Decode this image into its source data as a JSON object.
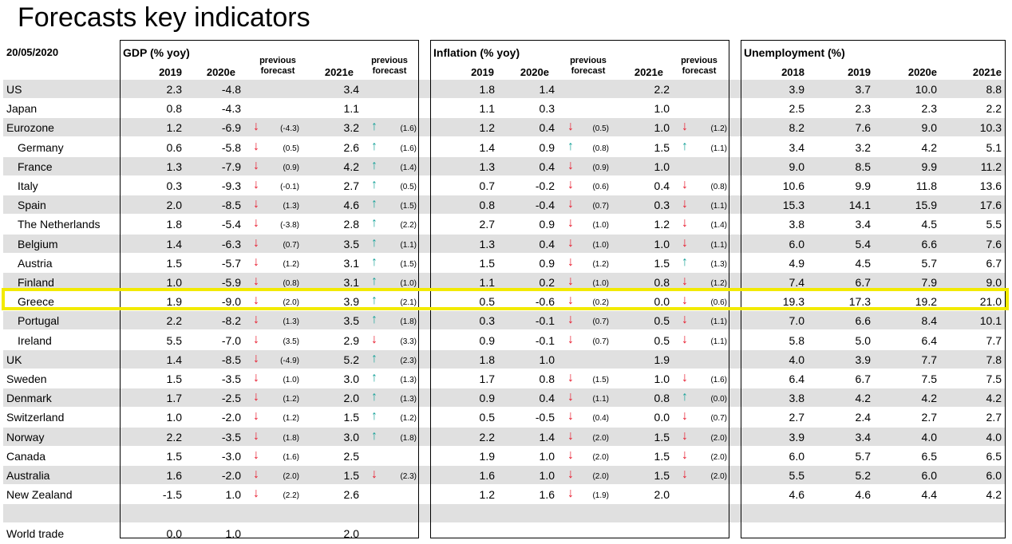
{
  "title": "Forecasts key indicators",
  "date": "20/05/2020",
  "colors": {
    "band": "#e0e0e0",
    "down_arrow": "#e8192c",
    "up_arrow": "#1aa39a",
    "highlight": "#f2ea00"
  },
  "arrows": {
    "down": "↓",
    "up": "↑"
  },
  "gdp": {
    "title": "GDP (% yoy)",
    "h2019": "2019",
    "h2020e": "2020e",
    "hprev1_a": "previous",
    "hprev1_b": "forecast",
    "h2021e": "2021e",
    "hprev2_a": "previous",
    "hprev2_b": "forecast"
  },
  "inflation": {
    "title": "Inflation (% yoy)",
    "h2019": "2019",
    "h2020e": "2020e",
    "hprev1_a": "previous",
    "hprev1_b": "forecast",
    "h2021e": "2021e",
    "hprev2_a": "previous",
    "hprev2_b": "forecast"
  },
  "unemployment": {
    "title": "Unemployment (%)",
    "h2018": "2018",
    "h2019": "2019",
    "h2020e": "2020e",
    "h2021e": "2021e"
  },
  "rows": [
    {
      "label": "US",
      "indent": false,
      "band": true,
      "g19": "2.3",
      "g20": "-4.8",
      "g20a": "",
      "g20p": "",
      "g21": "3.4",
      "g21a": "",
      "g21p": "",
      "i19": "1.8",
      "i20": "1.4",
      "i20a": "",
      "i20p": "",
      "i21": "2.2",
      "i21a": "",
      "i21p": "",
      "u18": "3.9",
      "u19": "3.7",
      "u20": "10.0",
      "u21": "8.8"
    },
    {
      "label": "Japan",
      "indent": false,
      "band": false,
      "g19": "0.8",
      "g20": "-4.3",
      "g20a": "",
      "g20p": "",
      "g21": "1.1",
      "g21a": "",
      "g21p": "",
      "i19": "1.1",
      "i20": "0.3",
      "i20a": "",
      "i20p": "",
      "i21": "1.0",
      "i21a": "",
      "i21p": "",
      "u18": "2.5",
      "u19": "2.3",
      "u20": "2.3",
      "u21": "2.2"
    },
    {
      "label": "Eurozone",
      "indent": false,
      "band": true,
      "g19": "1.2",
      "g20": "-6.9",
      "g20a": "down",
      "g20p": "(-4.3)",
      "g21": "3.2",
      "g21a": "up",
      "g21p": "(1.6)",
      "i19": "1.2",
      "i20": "0.4",
      "i20a": "down",
      "i20p": "(0.5)",
      "i21": "1.0",
      "i21a": "down",
      "i21p": "(1.2)",
      "u18": "8.2",
      "u19": "7.6",
      "u20": "9.0",
      "u21": "10.3"
    },
    {
      "label": "Germany",
      "indent": true,
      "band": false,
      "g19": "0.6",
      "g20": "-5.8",
      "g20a": "down",
      "g20p": "(0.5)",
      "g21": "2.6",
      "g21a": "up",
      "g21p": "(1.6)",
      "i19": "1.4",
      "i20": "0.9",
      "i20a": "up",
      "i20p": "(0.8)",
      "i21": "1.5",
      "i21a": "up",
      "i21p": "(1.1)",
      "u18": "3.4",
      "u19": "3.2",
      "u20": "4.2",
      "u21": "5.1"
    },
    {
      "label": "France",
      "indent": true,
      "band": true,
      "g19": "1.3",
      "g20": "-7.9",
      "g20a": "down",
      "g20p": "(0.9)",
      "g21": "4.2",
      "g21a": "up",
      "g21p": "(1.4)",
      "i19": "1.3",
      "i20": "0.4",
      "i20a": "down",
      "i20p": "(0.9)",
      "i21": "1.0",
      "i21a": "",
      "i21p": "",
      "u18": "9.0",
      "u19": "8.5",
      "u20": "9.9",
      "u21": "11.2"
    },
    {
      "label": "Italy",
      "indent": true,
      "band": false,
      "g19": "0.3",
      "g20": "-9.3",
      "g20a": "down",
      "g20p": "(-0.1)",
      "g21": "2.7",
      "g21a": "up",
      "g21p": "(0.5)",
      "i19": "0.7",
      "i20": "-0.2",
      "i20a": "down",
      "i20p": "(0.6)",
      "i21": "0.4",
      "i21a": "down",
      "i21p": "(0.8)",
      "u18": "10.6",
      "u19": "9.9",
      "u20": "11.8",
      "u21": "13.6"
    },
    {
      "label": "Spain",
      "indent": true,
      "band": true,
      "g19": "2.0",
      "g20": "-8.5",
      "g20a": "down",
      "g20p": "(1.3)",
      "g21": "4.6",
      "g21a": "up",
      "g21p": "(1.5)",
      "i19": "0.8",
      "i20": "-0.4",
      "i20a": "down",
      "i20p": "(0.7)",
      "i21": "0.3",
      "i21a": "down",
      "i21p": "(1.1)",
      "u18": "15.3",
      "u19": "14.1",
      "u20": "15.9",
      "u21": "17.6"
    },
    {
      "label": "The Netherlands",
      "indent": true,
      "band": false,
      "g19": "1.8",
      "g20": "-5.4",
      "g20a": "down",
      "g20p": "(-3.8)",
      "g21": "2.8",
      "g21a": "up",
      "g21p": "(2.2)",
      "i19": "2.7",
      "i20": "0.9",
      "i20a": "down",
      "i20p": "(1.0)",
      "i21": "1.2",
      "i21a": "down",
      "i21p": "(1.4)",
      "u18": "3.8",
      "u19": "3.4",
      "u20": "4.5",
      "u21": "5.5"
    },
    {
      "label": "Belgium",
      "indent": true,
      "band": true,
      "g19": "1.4",
      "g20": "-6.3",
      "g20a": "down",
      "g20p": "(0.7)",
      "g21": "3.5",
      "g21a": "up",
      "g21p": "(1.1)",
      "i19": "1.3",
      "i20": "0.4",
      "i20a": "down",
      "i20p": "(1.0)",
      "i21": "1.0",
      "i21a": "down",
      "i21p": "(1.1)",
      "u18": "6.0",
      "u19": "5.4",
      "u20": "6.6",
      "u21": "7.6"
    },
    {
      "label": "Austria",
      "indent": true,
      "band": false,
      "g19": "1.5",
      "g20": "-5.7",
      "g20a": "down",
      "g20p": "(1.2)",
      "g21": "3.1",
      "g21a": "up",
      "g21p": "(1.5)",
      "i19": "1.5",
      "i20": "0.9",
      "i20a": "down",
      "i20p": "(1.2)",
      "i21": "1.5",
      "i21a": "up",
      "i21p": "(1.3)",
      "u18": "4.9",
      "u19": "4.5",
      "u20": "5.7",
      "u21": "6.7"
    },
    {
      "label": "Finland",
      "indent": true,
      "band": true,
      "g19": "1.0",
      "g20": "-5.9",
      "g20a": "down",
      "g20p": "(0.8)",
      "g21": "3.1",
      "g21a": "up",
      "g21p": "(1.0)",
      "i19": "1.1",
      "i20": "0.2",
      "i20a": "down",
      "i20p": "(1.0)",
      "i21": "0.8",
      "i21a": "down",
      "i21p": "(1.2)",
      "u18": "7.4",
      "u19": "6.7",
      "u20": "7.9",
      "u21": "9.0"
    },
    {
      "label": "Greece",
      "indent": true,
      "band": false,
      "g19": "1.9",
      "g20": "-9.0",
      "g20a": "down",
      "g20p": "(2.0)",
      "g21": "3.9",
      "g21a": "up",
      "g21p": "(2.1)",
      "i19": "0.5",
      "i20": "-0.6",
      "i20a": "down",
      "i20p": "(0.2)",
      "i21": "0.0",
      "i21a": "down",
      "i21p": "(0.6)",
      "u18": "19.3",
      "u19": "17.3",
      "u20": "19.2",
      "u21": "21.0"
    },
    {
      "label": "Portugal",
      "indent": true,
      "band": true,
      "g19": "2.2",
      "g20": "-8.2",
      "g20a": "down",
      "g20p": "(1.3)",
      "g21": "3.5",
      "g21a": "up",
      "g21p": "(1.8)",
      "i19": "0.3",
      "i20": "-0.1",
      "i20a": "down",
      "i20p": "(0.7)",
      "i21": "0.5",
      "i21a": "down",
      "i21p": "(1.1)",
      "u18": "7.0",
      "u19": "6.6",
      "u20": "8.4",
      "u21": "10.1"
    },
    {
      "label": "Ireland",
      "indent": true,
      "band": false,
      "g19": "5.5",
      "g20": "-7.0",
      "g20a": "down",
      "g20p": "(3.5)",
      "g21": "2.9",
      "g21a": "down",
      "g21p": "(3.3)",
      "i19": "0.9",
      "i20": "-0.1",
      "i20a": "down",
      "i20p": "(0.7)",
      "i21": "0.5",
      "i21a": "down",
      "i21p": "(1.1)",
      "u18": "5.8",
      "u19": "5.0",
      "u20": "6.4",
      "u21": "7.7"
    },
    {
      "label": "UK",
      "indent": false,
      "band": true,
      "g19": "1.4",
      "g20": "-8.5",
      "g20a": "down",
      "g20p": "(-4.9)",
      "g21": "5.2",
      "g21a": "up",
      "g21p": "(2.3)",
      "i19": "1.8",
      "i20": "1.0",
      "i20a": "",
      "i20p": "",
      "i21": "1.9",
      "i21a": "",
      "i21p": "",
      "u18": "4.0",
      "u19": "3.9",
      "u20": "7.7",
      "u21": "7.8"
    },
    {
      "label": "Sweden",
      "indent": false,
      "band": false,
      "g19": "1.5",
      "g20": "-3.5",
      "g20a": "down",
      "g20p": "(1.0)",
      "g21": "3.0",
      "g21a": "up",
      "g21p": "(1.3)",
      "i19": "1.7",
      "i20": "0.8",
      "i20a": "down",
      "i20p": "(1.5)",
      "i21": "1.0",
      "i21a": "down",
      "i21p": "(1.6)",
      "u18": "6.4",
      "u19": "6.7",
      "u20": "7.5",
      "u21": "7.5"
    },
    {
      "label": "Denmark",
      "indent": false,
      "band": true,
      "g19": "1.7",
      "g20": "-2.5",
      "g20a": "down",
      "g20p": "(1.2)",
      "g21": "2.0",
      "g21a": "up",
      "g21p": "(1.3)",
      "i19": "0.9",
      "i20": "0.4",
      "i20a": "down",
      "i20p": "(1.1)",
      "i21": "0.8",
      "i21a": "up",
      "i21p": "(0.0)",
      "u18": "3.8",
      "u19": "4.2",
      "u20": "4.2",
      "u21": "4.2"
    },
    {
      "label": "Switzerland",
      "indent": false,
      "band": false,
      "g19": "1.0",
      "g20": "-2.0",
      "g20a": "down",
      "g20p": "(1.2)",
      "g21": "1.5",
      "g21a": "up",
      "g21p": "(1.2)",
      "i19": "0.5",
      "i20": "-0.5",
      "i20a": "down",
      "i20p": "(0.4)",
      "i21": "0.0",
      "i21a": "down",
      "i21p": "(0.7)",
      "u18": "2.7",
      "u19": "2.4",
      "u20": "2.7",
      "u21": "2.7"
    },
    {
      "label": "Norway",
      "indent": false,
      "band": true,
      "g19": "2.2",
      "g20": "-3.5",
      "g20a": "down",
      "g20p": "(1.8)",
      "g21": "3.0",
      "g21a": "up",
      "g21p": "(1.8)",
      "i19": "2.2",
      "i20": "1.4",
      "i20a": "down",
      "i20p": "(2.0)",
      "i21": "1.5",
      "i21a": "down",
      "i21p": "(2.0)",
      "u18": "3.9",
      "u19": "3.4",
      "u20": "4.0",
      "u21": "4.0"
    },
    {
      "label": "Canada",
      "indent": false,
      "band": false,
      "g19": "1.5",
      "g20": "-3.0",
      "g20a": "down",
      "g20p": "(1.6)",
      "g21": "2.5",
      "g21a": "",
      "g21p": "",
      "i19": "1.9",
      "i20": "1.0",
      "i20a": "down",
      "i20p": "(2.0)",
      "i21": "1.5",
      "i21a": "down",
      "i21p": "(2.0)",
      "u18": "6.0",
      "u19": "5.7",
      "u20": "6.5",
      "u21": "6.5"
    },
    {
      "label": "Australia",
      "indent": false,
      "band": true,
      "g19": "1.6",
      "g20": "-2.0",
      "g20a": "down",
      "g20p": "(2.0)",
      "g21": "1.5",
      "g21a": "down",
      "g21p": "(2.3)",
      "i19": "1.6",
      "i20": "1.0",
      "i20a": "down",
      "i20p": "(2.0)",
      "i21": "1.5",
      "i21a": "down",
      "i21p": "(2.0)",
      "u18": "5.5",
      "u19": "5.2",
      "u20": "6.0",
      "u21": "6.0"
    },
    {
      "label": "New Zealand",
      "indent": false,
      "band": false,
      "g19": "-1.5",
      "g20": "1.0",
      "g20a": "down",
      "g20p": "(2.2)",
      "g21": "2.6",
      "g21a": "",
      "g21p": "",
      "i19": "1.2",
      "i20": "1.6",
      "i20a": "down",
      "i20p": "(1.9)",
      "i21": "2.0",
      "i21a": "",
      "i21p": "",
      "u18": "4.6",
      "u19": "4.6",
      "u20": "4.4",
      "u21": "4.2"
    },
    {
      "label": "",
      "indent": false,
      "band": true,
      "g19": "",
      "g20": "",
      "g20a": "",
      "g20p": "",
      "g21": "",
      "g21a": "",
      "g21p": "",
      "i19": "",
      "i20": "",
      "i20a": "",
      "i20p": "",
      "i21": "",
      "i21a": "",
      "i21p": "",
      "u18": "",
      "u19": "",
      "u20": "",
      "u21": ""
    },
    {
      "label": "World trade",
      "indent": false,
      "band": false,
      "g19": "0.0",
      "g20": "1.0",
      "g20a": "",
      "g20p": "",
      "g21": "2.0",
      "g21a": "",
      "g21p": "",
      "i19": "",
      "i20": "",
      "i20a": "",
      "i20p": "",
      "i21": "",
      "i21a": "",
      "i21p": "",
      "u18": "",
      "u19": "",
      "u20": "",
      "u21": ""
    }
  ]
}
